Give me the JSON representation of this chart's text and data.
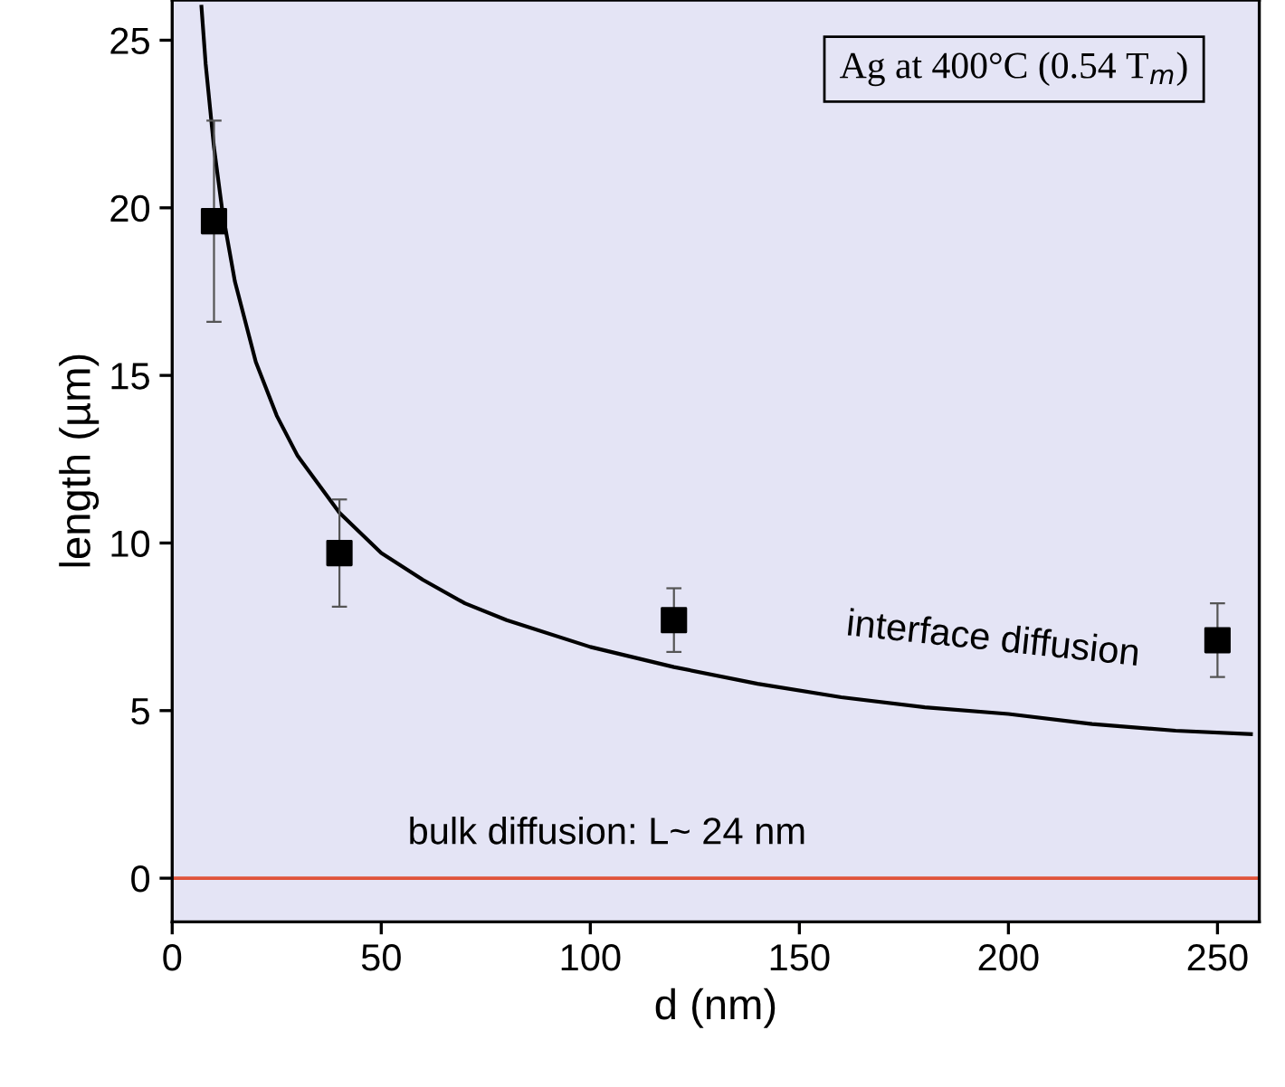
{
  "chart_data": {
    "type": "scatter",
    "xlabel": "d (nm)",
    "ylabel": "length (µm)",
    "xlim": [
      0,
      260
    ],
    "ylim": [
      -1.3,
      26.2
    ],
    "xticks": [
      0,
      50,
      100,
      150,
      200,
      250
    ],
    "yticks": [
      0,
      5,
      10,
      15,
      20,
      25
    ],
    "grid": false,
    "legend": false,
    "series": [
      {
        "marker": "square",
        "color": "#000000",
        "x": [
          10,
          40,
          120,
          250
        ],
        "values": [
          19.6,
          9.7,
          7.7,
          7.1
        ],
        "errors": [
          3.0,
          1.6,
          0.95,
          1.1
        ]
      },
      {
        "type": "line",
        "marker": "none",
        "color": "#000000",
        "line_style": "solid",
        "x": [
          7,
          8,
          10,
          12,
          15,
          20,
          25,
          30,
          40,
          50,
          60,
          70,
          80,
          100,
          120,
          140,
          160,
          180,
          200,
          220,
          240,
          258
        ],
        "values": [
          26.0,
          24.3,
          21.8,
          19.9,
          17.8,
          15.4,
          13.8,
          12.6,
          10.9,
          9.7,
          8.9,
          8.2,
          7.7,
          6.9,
          6.3,
          5.8,
          5.4,
          5.1,
          4.9,
          4.6,
          4.4,
          4.3
        ]
      }
    ],
    "ref_lines": [
      {
        "axis": "y",
        "value": 0,
        "color": "#e0533a",
        "line_style": "solid"
      }
    ],
    "annotations": [
      "Ag at 400°C (0.54 T$_{m}$)",
      "interface diffusion",
      "bulk diffusion: L~ 24 nm"
    ]
  }
}
